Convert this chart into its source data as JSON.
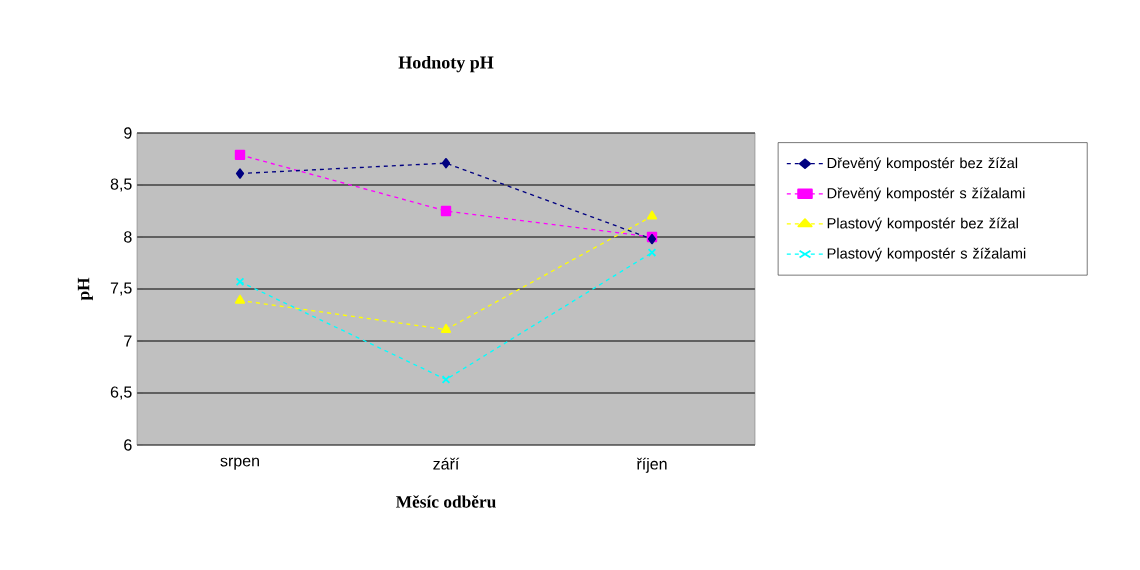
{
  "chart_data": {
    "type": "line",
    "title": "Hodnoty  pH",
    "xlabel": "Měsíc odběru",
    "ylabel": "pH",
    "categories": [
      "srpen",
      "září",
      "říjen"
    ],
    "series": [
      {
        "name": "Dřevěný kompostér bez žížal",
        "color": "#000080",
        "marker": "diamond",
        "values": [
          8.61,
          8.71,
          7.98
        ]
      },
      {
        "name": "Dřevěný kompostér s žížalami",
        "color": "#ff00ff",
        "marker": "square",
        "values": [
          8.79,
          8.25,
          8.0
        ]
      },
      {
        "name": "Plastový kompostér bez žížal",
        "color": "#ffff00",
        "marker": "triangle",
        "values": [
          7.39,
          7.11,
          8.2
        ]
      },
      {
        "name": "Plastový kompostér s žížalami",
        "color": "#00ffff",
        "marker": "cross",
        "values": [
          7.57,
          6.63,
          7.85
        ]
      }
    ],
    "ylim": [
      6,
      9
    ],
    "yticks": [
      6,
      {
        "value": 6.5,
        "label": "6,5"
      },
      7,
      {
        "value": 7.5,
        "label": "7,5"
      },
      8,
      {
        "value": 8.5,
        "label": "8,5"
      },
      9
    ],
    "grid": "y",
    "legend": "right",
    "line_style": "dashed"
  }
}
